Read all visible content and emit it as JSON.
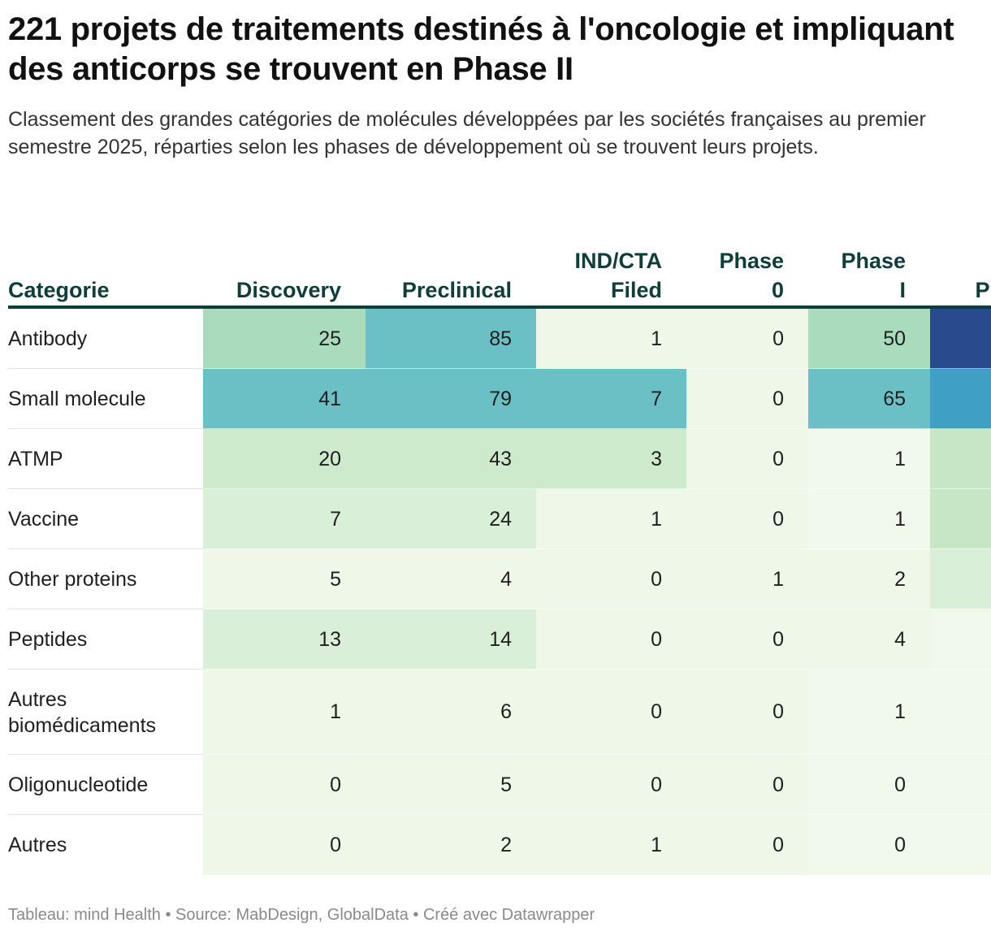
{
  "header": {
    "title": "221 projets de traitements destinés à l'oncologie et impliquant des anticorps se trouvent en Phase II",
    "subtitle": "Classement des grandes catégories de molécules développées par les sociétés françaises au premier semestre 2025, réparties selon les phases de développement où se trouvent leurs projets."
  },
  "footer": {
    "text": "Tableau: mind Health • Source: MabDesign, GlobalData • Créé avec Datawrapper"
  },
  "chart_data": {
    "type": "table",
    "columns": [
      "Categorie",
      "Discovery",
      "Preclinical",
      "IND/CTA\nFiled",
      "Phase\n0",
      "Phase\nI",
      "Ph"
    ],
    "rows": [
      {
        "category": "Antibody",
        "values": [
          25,
          85,
          1,
          0,
          50,
          null
        ]
      },
      {
        "category": "Small molecule",
        "values": [
          41,
          79,
          7,
          0,
          65,
          null
        ]
      },
      {
        "category": "ATMP",
        "values": [
          20,
          43,
          3,
          0,
          1,
          null
        ]
      },
      {
        "category": "Vaccine",
        "values": [
          7,
          24,
          1,
          0,
          1,
          null
        ]
      },
      {
        "category": "Other proteins",
        "values": [
          5,
          4,
          0,
          1,
          2,
          null
        ]
      },
      {
        "category": "Peptides",
        "values": [
          13,
          14,
          0,
          0,
          4,
          null
        ]
      },
      {
        "category": "Autres biomédicaments",
        "values": [
          1,
          6,
          0,
          0,
          1,
          null
        ]
      },
      {
        "category": "Oligonucleotide",
        "values": [
          0,
          5,
          0,
          0,
          0,
          null
        ]
      },
      {
        "category": "Autres",
        "values": [
          0,
          2,
          1,
          0,
          0,
          null
        ]
      }
    ],
    "cut_off_column_colors": [
      "#274b8c",
      "#3f9fc4",
      "#c6e7c6",
      "#c6e7c6",
      "#d9efd7",
      "#f1f8ec",
      "#f1f8ec",
      "#f1f8ec",
      "#f1f8ec"
    ],
    "color_scale": [
      "#f3f9ee",
      "#cfeccb",
      "#a9dcbc",
      "#6bc0c5",
      "#3f9fc4",
      "#274b8c"
    ],
    "colors": {
      "header_text": "#0f3d3a",
      "header_rule": "#0f3d3a"
    }
  }
}
